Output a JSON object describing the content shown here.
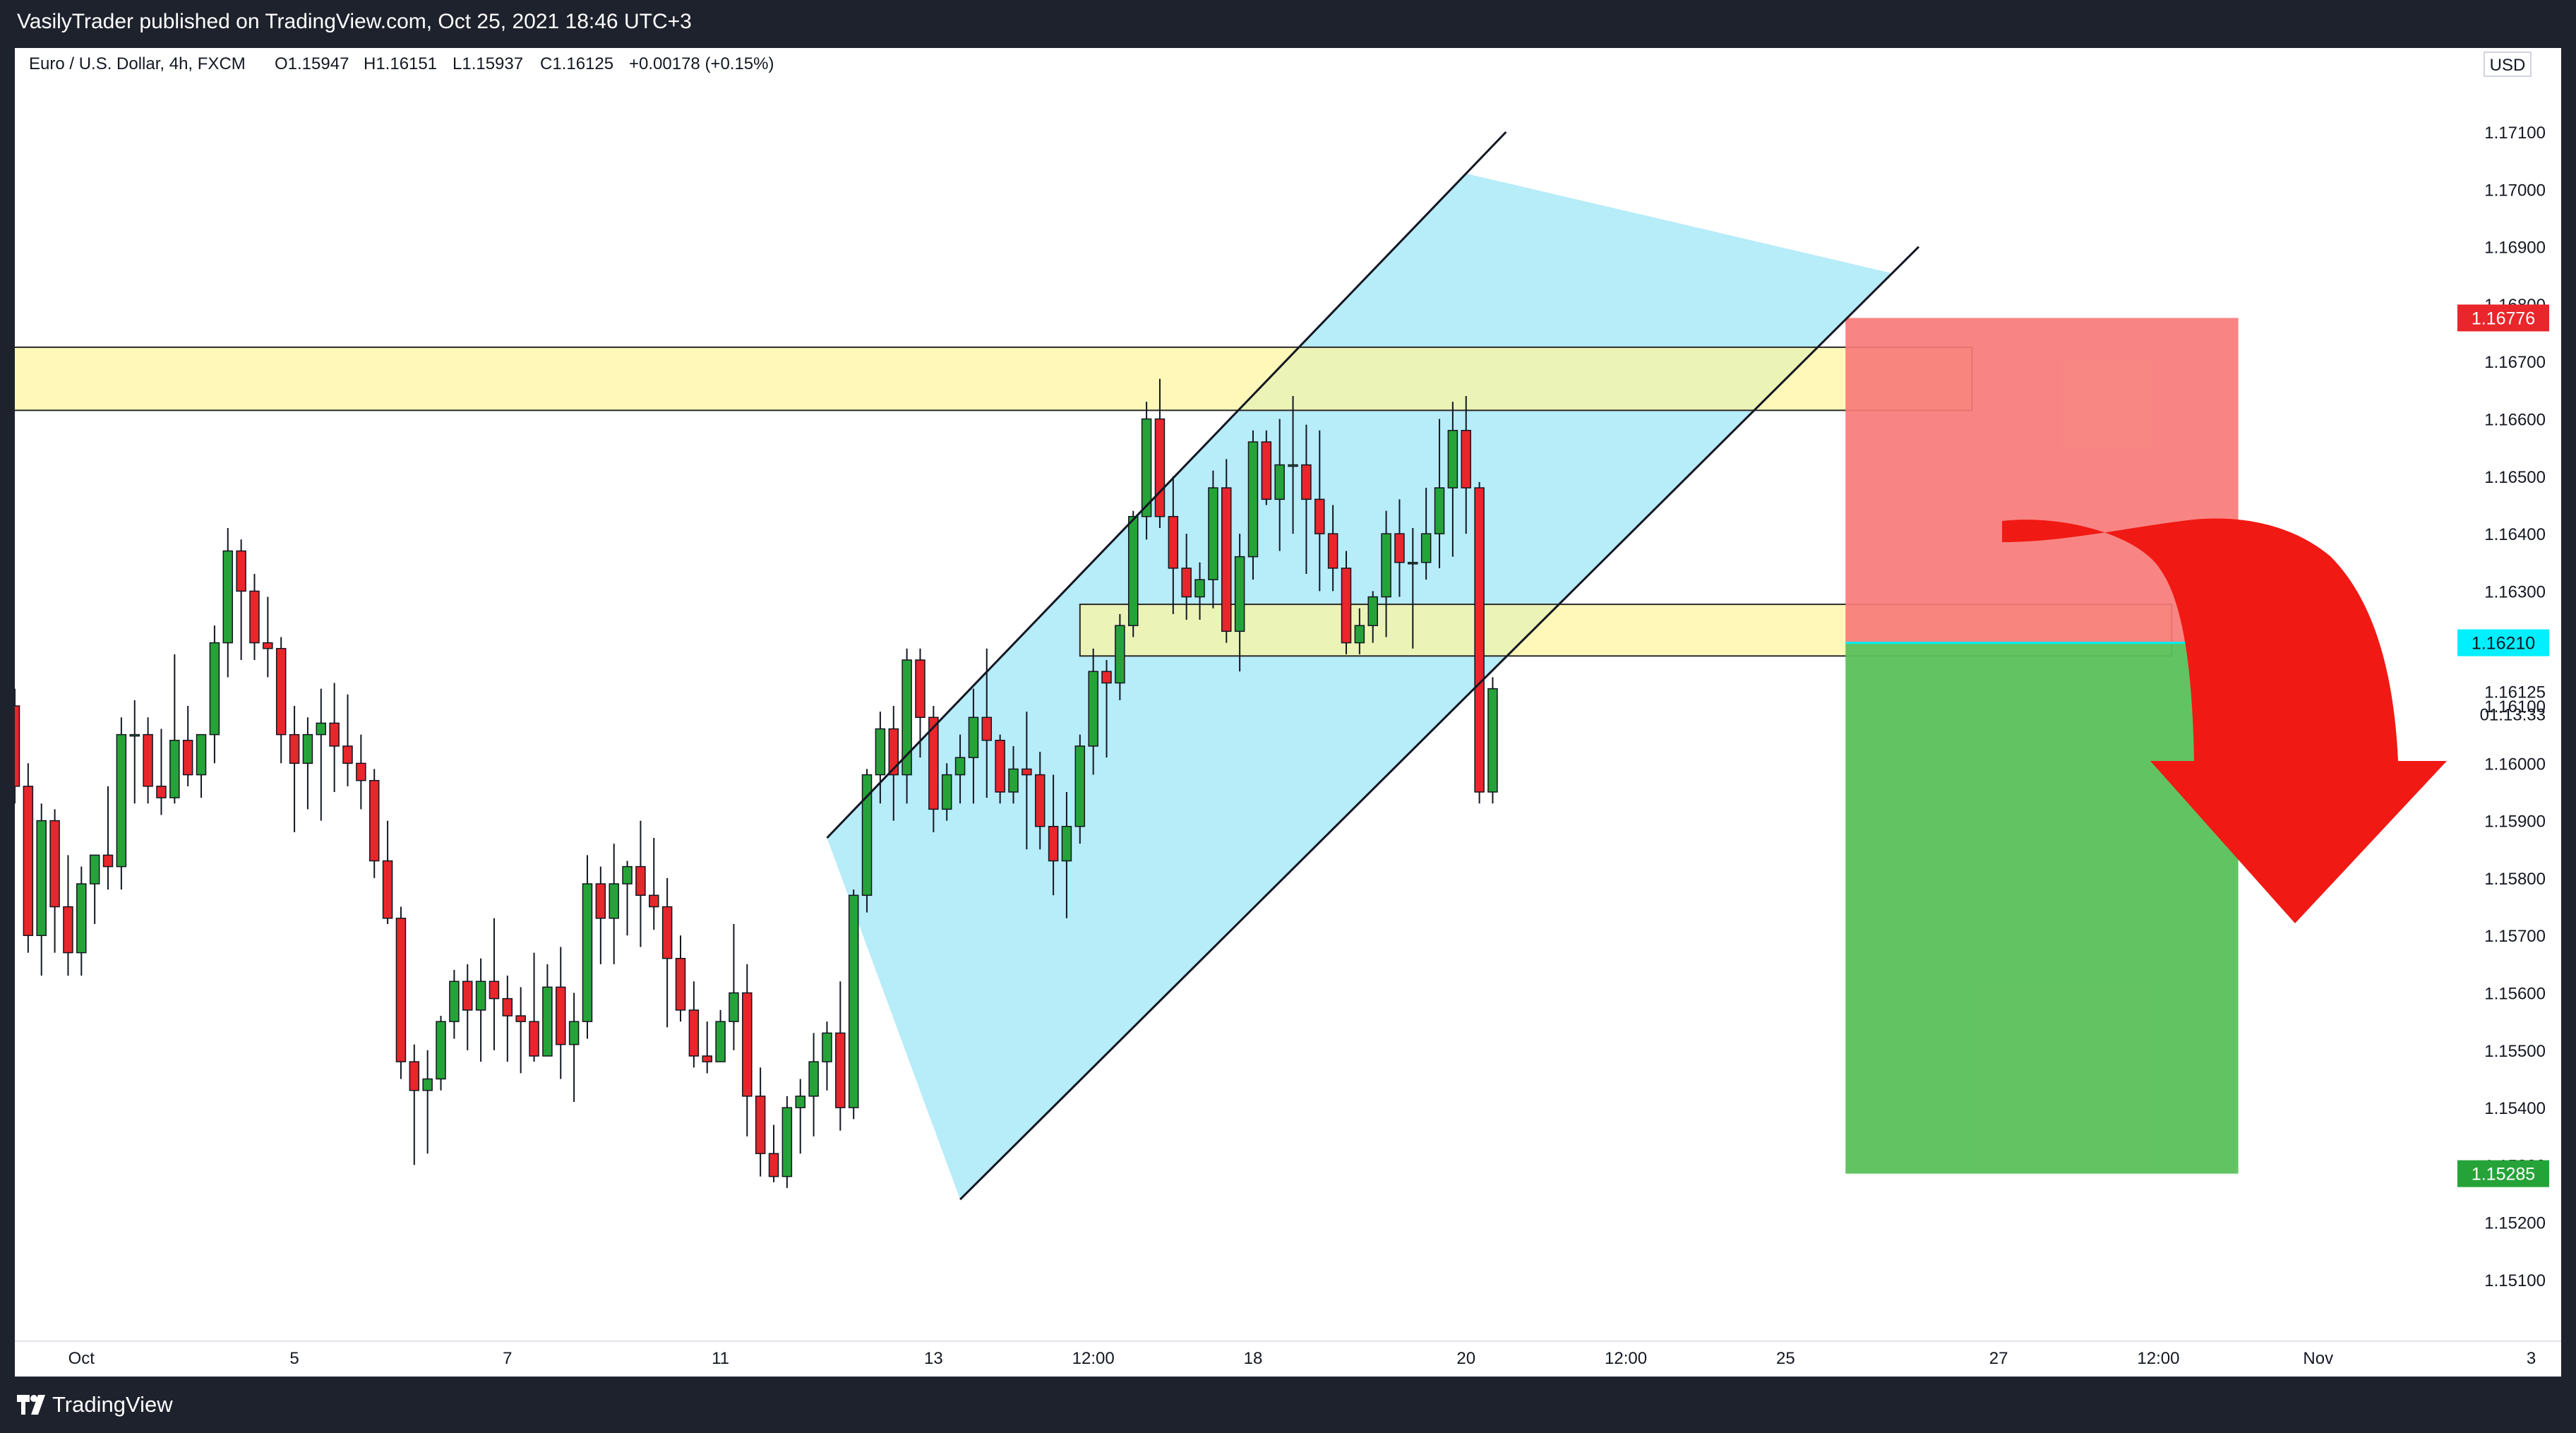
{
  "header": {
    "publish_line": "VasilyTrader published on TradingView.com, Oct 25, 2021 18:46 UTC+3"
  },
  "legend": {
    "symbol": "Euro / U.S. Dollar, 4h, FXCM",
    "open": "O1.15947",
    "high": "H1.16151",
    "low": "L1.15937",
    "close": "C1.16125",
    "change": "+0.00178 (+0.15%)"
  },
  "currency": "USD",
  "footer": {
    "brand": "TradingView"
  },
  "colors": {
    "up": "#26a338",
    "down": "#e8262b",
    "channel": "#b3ebf9",
    "zone": "#fff59d",
    "stop": "#f77b78",
    "target": "#5cc15d",
    "arrow": "#f11914",
    "tag_stop": "#e8262b",
    "tag_entry": "#00f0ff",
    "tag_target": "#26a338"
  },
  "icons": {
    "logo": "tradingview-logo-icon"
  },
  "chart_data": {
    "type": "candlestick",
    "timeframe": "4h",
    "ylim": [
      1.1505,
      1.1723
    ],
    "y_ticks": [
      "1.17100",
      "1.17000",
      "1.16900",
      "1.16800",
      "1.16700",
      "1.16600",
      "1.16500",
      "1.16400",
      "1.16300",
      "1.16200",
      "1.16100",
      "1.16000",
      "1.15900",
      "1.15800",
      "1.15700",
      "1.15600",
      "1.15500",
      "1.15400",
      "1.15300",
      "1.15200",
      "1.15100"
    ],
    "y_tick_values": [
      1.171,
      1.17,
      1.169,
      1.168,
      1.167,
      1.166,
      1.165,
      1.164,
      1.163,
      1.162,
      1.161,
      1.16,
      1.159,
      1.158,
      1.157,
      1.156,
      1.155,
      1.154,
      1.153,
      1.152,
      1.151
    ],
    "x_ticks": [
      {
        "label": "Oct",
        "bar": 5
      },
      {
        "label": "5",
        "bar": 21
      },
      {
        "label": "7",
        "bar": 37
      },
      {
        "label": "11",
        "bar": 53
      },
      {
        "label": "13",
        "bar": 69
      },
      {
        "label": "12:00",
        "bar": 81
      },
      {
        "label": "18",
        "bar": 93
      },
      {
        "label": "20",
        "bar": 109
      },
      {
        "label": "12:00",
        "bar": 121
      },
      {
        "label": "25",
        "bar": 133
      },
      {
        "label": "27",
        "bar": 149
      },
      {
        "label": "12:00",
        "bar": 161
      },
      {
        "label": "Nov",
        "bar": 173
      },
      {
        "label": "3",
        "bar": 189
      }
    ],
    "price_labels": {
      "last": "1.16125",
      "countdown": "01:13:33",
      "stop": "1.16776",
      "entry": "1.16210",
      "target": "1.15285"
    },
    "candles": [
      [
        1.161,
        1.1613,
        1.1593,
        1.1596
      ],
      [
        1.1596,
        1.16,
        1.1567,
        1.157
      ],
      [
        1.157,
        1.1593,
        1.1563,
        1.159
      ],
      [
        1.159,
        1.1592,
        1.1567,
        1.1575
      ],
      [
        1.1575,
        1.1584,
        1.1563,
        1.1567
      ],
      [
        1.1567,
        1.1582,
        1.1563,
        1.1579
      ],
      [
        1.1579,
        1.1584,
        1.1572,
        1.1584
      ],
      [
        1.1584,
        1.1596,
        1.1578,
        1.1582
      ],
      [
        1.1582,
        1.1608,
        1.1578,
        1.1605
      ],
      [
        1.1605,
        1.1611,
        1.1593,
        1.1605
      ],
      [
        1.1605,
        1.1608,
        1.1593,
        1.1596
      ],
      [
        1.1596,
        1.1606,
        1.1591,
        1.1594
      ],
      [
        1.1594,
        1.1619,
        1.1593,
        1.1604
      ],
      [
        1.1604,
        1.161,
        1.1596,
        1.1598
      ],
      [
        1.1598,
        1.1605,
        1.1594,
        1.1605
      ],
      [
        1.1605,
        1.1624,
        1.16,
        1.1621
      ],
      [
        1.1621,
        1.1641,
        1.1615,
        1.1637
      ],
      [
        1.1637,
        1.1639,
        1.1618,
        1.163
      ],
      [
        1.163,
        1.1633,
        1.1618,
        1.1621
      ],
      [
        1.1621,
        1.1629,
        1.1615,
        1.162
      ],
      [
        1.162,
        1.1622,
        1.16,
        1.1605
      ],
      [
        1.1605,
        1.161,
        1.1588,
        1.16
      ],
      [
        1.16,
        1.1608,
        1.1592,
        1.1605
      ],
      [
        1.1605,
        1.1613,
        1.159,
        1.1607
      ],
      [
        1.1607,
        1.1614,
        1.1595,
        1.1603
      ],
      [
        1.1603,
        1.1612,
        1.1596,
        1.16
      ],
      [
        1.16,
        1.1605,
        1.1592,
        1.1597
      ],
      [
        1.1597,
        1.1599,
        1.158,
        1.1583
      ],
      [
        1.1583,
        1.159,
        1.1572,
        1.1573
      ],
      [
        1.1573,
        1.1575,
        1.1545,
        1.1548
      ],
      [
        1.1548,
        1.1551,
        1.153,
        1.1543
      ],
      [
        1.1543,
        1.155,
        1.1532,
        1.1545
      ],
      [
        1.1545,
        1.1556,
        1.1543,
        1.1555
      ],
      [
        1.1555,
        1.1564,
        1.1552,
        1.1562
      ],
      [
        1.1562,
        1.1565,
        1.155,
        1.1557
      ],
      [
        1.1557,
        1.1566,
        1.1548,
        1.1562
      ],
      [
        1.1562,
        1.1573,
        1.155,
        1.1559
      ],
      [
        1.1559,
        1.1563,
        1.1548,
        1.1556
      ],
      [
        1.1556,
        1.1561,
        1.1546,
        1.1555
      ],
      [
        1.1555,
        1.1567,
        1.1548,
        1.1549
      ],
      [
        1.1549,
        1.1565,
        1.1549,
        1.1561
      ],
      [
        1.1561,
        1.1568,
        1.1545,
        1.1551
      ],
      [
        1.1551,
        1.156,
        1.1541,
        1.1555
      ],
      [
        1.1555,
        1.1584,
        1.1552,
        1.1579
      ],
      [
        1.1579,
        1.1582,
        1.1565,
        1.1573
      ],
      [
        1.1573,
        1.1586,
        1.1565,
        1.1579
      ],
      [
        1.1579,
        1.1583,
        1.157,
        1.1582
      ],
      [
        1.1582,
        1.159,
        1.1568,
        1.1577
      ],
      [
        1.1577,
        1.1587,
        1.1571,
        1.1575
      ],
      [
        1.1575,
        1.158,
        1.1554,
        1.1566
      ],
      [
        1.1566,
        1.157,
        1.1555,
        1.1557
      ],
      [
        1.1557,
        1.1562,
        1.1547,
        1.1549
      ],
      [
        1.1549,
        1.1555,
        1.1546,
        1.1548
      ],
      [
        1.1548,
        1.1557,
        1.1548,
        1.1555
      ],
      [
        1.1555,
        1.1572,
        1.155,
        1.156
      ],
      [
        1.156,
        1.1565,
        1.1535,
        1.1542
      ],
      [
        1.1542,
        1.1547,
        1.1528,
        1.1532
      ],
      [
        1.1532,
        1.1537,
        1.1527,
        1.1528
      ],
      [
        1.1528,
        1.1542,
        1.1526,
        1.154
      ],
      [
        1.154,
        1.1545,
        1.1532,
        1.1542
      ],
      [
        1.1542,
        1.1553,
        1.1535,
        1.1548
      ],
      [
        1.1548,
        1.1555,
        1.1543,
        1.1553
      ],
      [
        1.1553,
        1.1562,
        1.1536,
        1.154
      ],
      [
        1.154,
        1.1578,
        1.1538,
        1.1577
      ],
      [
        1.1577,
        1.1599,
        1.1574,
        1.1598
      ],
      [
        1.1598,
        1.1609,
        1.1593,
        1.1606
      ],
      [
        1.1606,
        1.161,
        1.159,
        1.1598
      ],
      [
        1.1598,
        1.162,
        1.1593,
        1.1618
      ],
      [
        1.1618,
        1.162,
        1.1601,
        1.1608
      ],
      [
        1.1608,
        1.161,
        1.1588,
        1.1592
      ],
      [
        1.1592,
        1.16,
        1.159,
        1.1598
      ],
      [
        1.1598,
        1.1605,
        1.1593,
        1.1601
      ],
      [
        1.1601,
        1.1613,
        1.1593,
        1.1608
      ],
      [
        1.1608,
        1.162,
        1.1594,
        1.1604
      ],
      [
        1.1604,
        1.1605,
        1.1593,
        1.1595
      ],
      [
        1.1595,
        1.1603,
        1.1593,
        1.1599
      ],
      [
        1.1599,
        1.1609,
        1.1585,
        1.1598
      ],
      [
        1.1598,
        1.1602,
        1.1585,
        1.1589
      ],
      [
        1.1589,
        1.1598,
        1.1577,
        1.1583
      ],
      [
        1.1583,
        1.1595,
        1.1573,
        1.1589
      ],
      [
        1.1589,
        1.1605,
        1.1586,
        1.1603
      ],
      [
        1.1603,
        1.162,
        1.1598,
        1.1616
      ],
      [
        1.1616,
        1.1618,
        1.1601,
        1.1614
      ],
      [
        1.1614,
        1.1626,
        1.1611,
        1.1624
      ],
      [
        1.1624,
        1.1644,
        1.1622,
        1.1643
      ],
      [
        1.1643,
        1.1663,
        1.1639,
        1.166
      ],
      [
        1.166,
        1.1667,
        1.1641,
        1.1643
      ],
      [
        1.1643,
        1.165,
        1.1626,
        1.1634
      ],
      [
        1.1634,
        1.164,
        1.1625,
        1.1629
      ],
      [
        1.1629,
        1.1635,
        1.1625,
        1.1632
      ],
      [
        1.1632,
        1.1651,
        1.1627,
        1.1648
      ],
      [
        1.1648,
        1.1653,
        1.1621,
        1.1623
      ],
      [
        1.1623,
        1.164,
        1.1616,
        1.1636
      ],
      [
        1.1636,
        1.1658,
        1.1632,
        1.1656
      ],
      [
        1.1656,
        1.1658,
        1.1645,
        1.1646
      ],
      [
        1.1646,
        1.166,
        1.1637,
        1.1652
      ],
      [
        1.1652,
        1.1664,
        1.164,
        1.1652
      ],
      [
        1.1652,
        1.1659,
        1.1633,
        1.1646
      ],
      [
        1.1646,
        1.1658,
        1.163,
        1.164
      ],
      [
        1.164,
        1.1645,
        1.163,
        1.1634
      ],
      [
        1.1634,
        1.1637,
        1.1619,
        1.1621
      ],
      [
        1.1621,
        1.1627,
        1.1619,
        1.1624
      ],
      [
        1.1624,
        1.163,
        1.1621,
        1.1629
      ],
      [
        1.1629,
        1.1644,
        1.1622,
        1.164
      ],
      [
        1.164,
        1.1646,
        1.1629,
        1.1635
      ],
      [
        1.1635,
        1.1641,
        1.162,
        1.1635
      ],
      [
        1.1635,
        1.1648,
        1.1632,
        1.164
      ],
      [
        1.164,
        1.166,
        1.1634,
        1.1648
      ],
      [
        1.1648,
        1.1663,
        1.1636,
        1.1658
      ],
      [
        1.1658,
        1.1664,
        1.164,
        1.1648
      ],
      [
        1.1648,
        1.1649,
        1.1593,
        1.1595
      ],
      [
        1.1595,
        1.1615,
        1.1593,
        1.1613
      ]
    ],
    "drawings": {
      "channel_upper": [
        [
          61,
          1.1587
        ],
        [
          112,
          1.171
        ]
      ],
      "channel_lower": [
        [
          71,
          1.1524
        ],
        [
          143,
          1.169
        ]
      ],
      "zone_upper": {
        "bar_from": -4,
        "bar_to": 147,
        "high": 1.16725,
        "low": 1.16615
      },
      "zone_lower": {
        "bar_from": 80,
        "bar_to": 162,
        "high": 1.16277,
        "low": 1.16187
      },
      "stop_box": {
        "bar_from": 137.5,
        "bar_to": 167,
        "top": 1.16776,
        "bottom": 1.1621
      },
      "target_box": {
        "bar_from": 137.5,
        "bar_to": 167,
        "top": 1.1621,
        "bottom": 1.15285
      }
    }
  }
}
